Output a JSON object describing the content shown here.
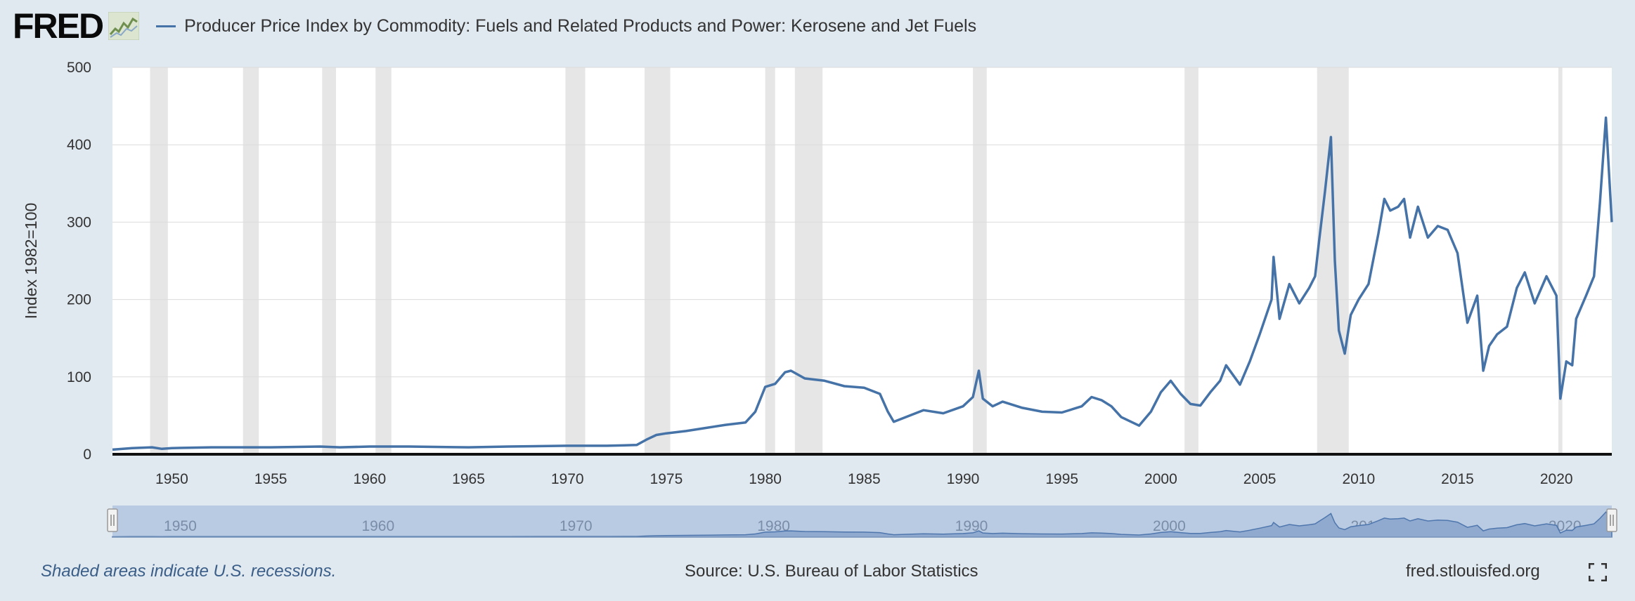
{
  "header": {
    "logo_text": "FRED",
    "logo_registered": "®",
    "logo_icon": "chart-line-icon",
    "title": "Producer Price Index by Commodity: Fuels and Related Products and Power: Kerosene and Jet Fuels"
  },
  "footer": {
    "recession_note": "Shaded areas indicate U.S. recessions.",
    "source": "Source: U.S. Bureau of Labor Statistics",
    "url": "fred.stlouisfed.org",
    "fullscreen_icon": "fullscreen-icon"
  },
  "colors": {
    "series": "#4572a7",
    "recession": "#e6e6e6",
    "navigator_fill": "#b9cbe3",
    "background": "#e1e9f0"
  },
  "chart_data": {
    "type": "line",
    "ylabel": "Index 1982=100",
    "ylim": [
      0,
      500
    ],
    "xlim": [
      1947,
      2022.8
    ],
    "yticks": [
      0,
      100,
      200,
      300,
      400,
      500
    ],
    "xticks": [
      1950,
      1955,
      1960,
      1965,
      1970,
      1975,
      1980,
      1985,
      1990,
      1995,
      2000,
      2005,
      2010,
      2015,
      2020
    ],
    "navigator_ticks": [
      1950,
      1960,
      1970,
      1980,
      1990,
      2000,
      2010,
      2020
    ],
    "grid": true,
    "legend": "top-left",
    "recessions": [
      [
        1948.9,
        1949.8
      ],
      [
        1953.6,
        1954.4
      ],
      [
        1957.6,
        1958.3
      ],
      [
        1960.3,
        1961.1
      ],
      [
        1969.9,
        1970.9
      ],
      [
        1973.9,
        1975.2
      ],
      [
        1980.0,
        1980.5
      ],
      [
        1981.5,
        1982.9
      ],
      [
        1990.5,
        1991.2
      ],
      [
        2001.2,
        2001.9
      ],
      [
        2007.9,
        2009.5
      ],
      [
        2020.1,
        2020.3
      ]
    ],
    "series": [
      {
        "name": "Producer Price Index by Commodity: Fuels and Related Products and Power: Kerosene and Jet Fuels",
        "x": [
          1947.0,
          1948.0,
          1949.0,
          1949.5,
          1950.0,
          1952.0,
          1955.0,
          1957.5,
          1958.5,
          1960.0,
          1962.0,
          1965.0,
          1967.0,
          1970.0,
          1972.0,
          1973.5,
          1974.0,
          1974.5,
          1975.0,
          1976.0,
          1977.0,
          1978.0,
          1979.0,
          1979.5,
          1980.0,
          1980.5,
          1981.0,
          1981.3,
          1982.0,
          1983.0,
          1984.0,
          1985.0,
          1985.8,
          1986.2,
          1986.5,
          1987.0,
          1988.0,
          1989.0,
          1990.0,
          1990.5,
          1990.8,
          1991.0,
          1991.5,
          1992.0,
          1993.0,
          1994.0,
          1995.0,
          1996.0,
          1996.5,
          1997.0,
          1997.5,
          1998.0,
          1998.9,
          1999.5,
          2000.0,
          2000.5,
          2001.0,
          2001.5,
          2002.0,
          2002.5,
          2003.0,
          2003.3,
          2004.0,
          2004.5,
          2005.0,
          2005.6,
          2005.7,
          2006.0,
          2006.5,
          2007.0,
          2007.5,
          2007.8,
          2008.0,
          2008.3,
          2008.6,
          2008.8,
          2009.0,
          2009.3,
          2009.6,
          2010.0,
          2010.5,
          2011.0,
          2011.3,
          2011.6,
          2012.0,
          2012.3,
          2012.6,
          2013.0,
          2013.5,
          2014.0,
          2014.5,
          2015.0,
          2015.5,
          2016.0,
          2016.3,
          2016.6,
          2017.0,
          2017.5,
          2018.0,
          2018.4,
          2018.9,
          2019.5,
          2020.0,
          2020.2,
          2020.5,
          2020.8,
          2021.0,
          2021.5,
          2021.9,
          2022.2,
          2022.5,
          2022.8
        ],
        "values": [
          6,
          8,
          9,
          7,
          8,
          9,
          9,
          10,
          9,
          10,
          10,
          9,
          10,
          11,
          11,
          12,
          19,
          25,
          27,
          30,
          34,
          38,
          41,
          55,
          87,
          91,
          106,
          108,
          98,
          95,
          88,
          86,
          78,
          55,
          42,
          47,
          57,
          53,
          62,
          74,
          108,
          72,
          62,
          68,
          60,
          55,
          54,
          62,
          74,
          70,
          62,
          48,
          37,
          55,
          80,
          95,
          78,
          65,
          63,
          80,
          95,
          115,
          90,
          120,
          155,
          200,
          255,
          175,
          220,
          195,
          215,
          230,
          275,
          340,
          410,
          250,
          160,
          130,
          180,
          200,
          220,
          285,
          330,
          315,
          320,
          330,
          280,
          320,
          280,
          295,
          290,
          260,
          170,
          205,
          108,
          140,
          155,
          165,
          215,
          235,
          195,
          230,
          205,
          72,
          120,
          115,
          175,
          205,
          230,
          325,
          435,
          300
        ]
      }
    ]
  }
}
